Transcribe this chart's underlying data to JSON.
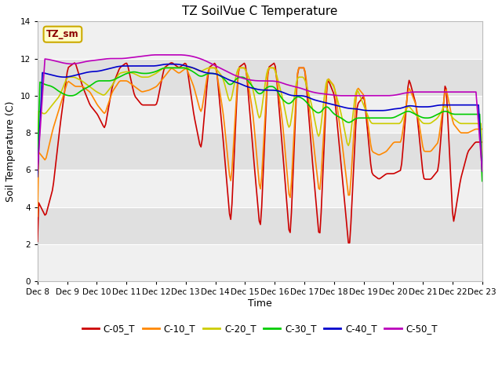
{
  "title": "TZ SoilVue C Temperature",
  "xlabel": "Time",
  "ylabel": "Soil Temperature (C)",
  "ylim": [
    0,
    14
  ],
  "yticks": [
    0,
    2,
    4,
    6,
    8,
    10,
    12,
    14
  ],
  "x_labels": [
    "Dec 8",
    "Dec 9",
    "Dec 10",
    "Dec 11",
    "Dec 12",
    "Dec 13",
    "Dec 14",
    "Dec 15",
    "Dec 16",
    "Dec 17",
    "Dec 18",
    "Dec 19",
    "Dec 20",
    "Dec 21",
    "Dec 22",
    "Dec 23"
  ],
  "series_colors": {
    "C-05_T": "#cc0000",
    "C-10_T": "#ff8800",
    "C-20_T": "#cccc00",
    "C-30_T": "#00cc00",
    "C-40_T": "#0000cc",
    "C-50_T": "#bb00bb"
  },
  "watermark_text": "TZ_sm",
  "watermark_bg": "#ffffcc",
  "watermark_border": "#ccaa00",
  "title_fontsize": 11,
  "axis_label_fontsize": 9,
  "tick_fontsize": 7.5,
  "legend_fontsize": 8.5
}
